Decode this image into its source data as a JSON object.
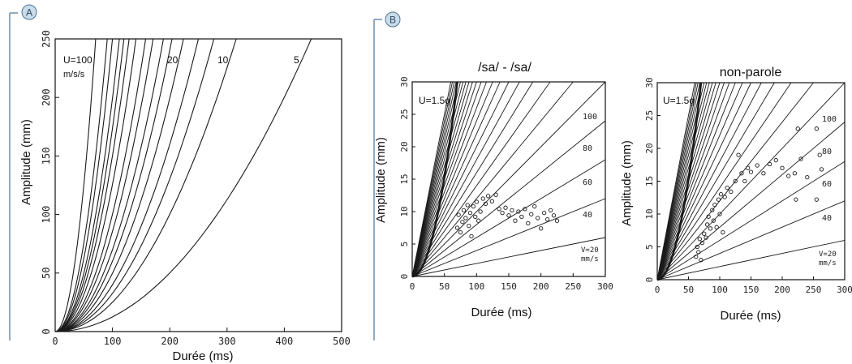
{
  "colors": {
    "curve": "#1a1a1a",
    "frame": "#111111",
    "bracket": "#6f8fa8",
    "badge_fill": "#c9dcea",
    "badge_stroke": "#4d7394"
  },
  "panels": {
    "A": {
      "badge": "A"
    },
    "B": {
      "badge": "B"
    }
  },
  "chart_data": [
    {
      "id": "A",
      "type": "line",
      "title": "",
      "xlabel": "Durée (ms)",
      "ylabel": "Amplitude (mm)",
      "xlim": [
        0,
        500
      ],
      "ylim": [
        0,
        250
      ],
      "xticks": [
        "0",
        "100",
        "200",
        "300",
        "400",
        "500"
      ],
      "yticks": [
        "0",
        "50",
        "100",
        "150",
        "200",
        "250"
      ],
      "family": "amplitude = U/2 * t^2 (parabolas)",
      "curve_labels": [
        "U=100",
        "m/s/s",
        "20",
        "10",
        "5"
      ],
      "series": [
        {
          "U": 100,
          "values_at_250mm_ms": 70.7
        },
        {
          "U": 60,
          "values_at_250mm_ms": 91
        },
        {
          "U": 50,
          "values_at_250mm_ms": 100
        },
        {
          "U": 40,
          "values_at_250mm_ms": 112
        },
        {
          "U": 35,
          "values_at_250mm_ms": 120
        },
        {
          "U": 30,
          "values_at_250mm_ms": 129
        },
        {
          "U": 25,
          "values_at_250mm_ms": 141
        },
        {
          "U": 20,
          "values_at_250mm_ms": 158
        },
        {
          "U": 17,
          "values_at_250mm_ms": 171
        },
        {
          "U": 14,
          "values_at_250mm_ms": 189
        },
        {
          "U": 12,
          "values_at_250mm_ms": 204
        },
        {
          "U": 10,
          "values_at_250mm_ms": 224
        },
        {
          "U": 8,
          "values_at_250mm_ms": 250
        },
        {
          "U": 6.5,
          "values_at_250mm_ms": 277
        },
        {
          "U": 5,
          "values_at_250mm_ms": 316
        },
        {
          "U": 2.5,
          "values_at_250mm_ms": 447
        }
      ]
    },
    {
      "id": "B1",
      "type": "line",
      "title": "/sa/ - /sa/",
      "xlabel": "Durée (ms)",
      "ylabel": "Amplitude (mm)",
      "xlim": [
        0,
        300
      ],
      "ylim": [
        0,
        30
      ],
      "xticks": [
        "0",
        "50",
        "100",
        "150",
        "200",
        "250",
        "300"
      ],
      "yticks": [
        "0",
        "5",
        "10",
        "15",
        "20",
        "25",
        "30"
      ],
      "parabola_label": "U=1.5g",
      "velocity_labels": [
        "100",
        "80",
        "60",
        "40",
        "V=20",
        "mm/s"
      ],
      "velocity_lines_mm_per_s": [
        20,
        40,
        60,
        80,
        100,
        120,
        140,
        160,
        180,
        200,
        220,
        240,
        260,
        280,
        300,
        320,
        340,
        360,
        380,
        400,
        420,
        440,
        460,
        480,
        500
      ],
      "points": [
        {
          "x": 70,
          "y": 7.5
        },
        {
          "x": 72,
          "y": 9.5
        },
        {
          "x": 75,
          "y": 6.8
        },
        {
          "x": 78,
          "y": 8.4
        },
        {
          "x": 80,
          "y": 10.2
        },
        {
          "x": 83,
          "y": 9.0
        },
        {
          "x": 86,
          "y": 11.0
        },
        {
          "x": 88,
          "y": 7.8
        },
        {
          "x": 90,
          "y": 9.8
        },
        {
          "x": 92,
          "y": 6.2
        },
        {
          "x": 95,
          "y": 10.8
        },
        {
          "x": 98,
          "y": 9.2
        },
        {
          "x": 100,
          "y": 11.5
        },
        {
          "x": 103,
          "y": 8.6
        },
        {
          "x": 106,
          "y": 10.0
        },
        {
          "x": 110,
          "y": 12.0
        },
        {
          "x": 114,
          "y": 11.2
        },
        {
          "x": 118,
          "y": 12.4
        },
        {
          "x": 124,
          "y": 11.6
        },
        {
          "x": 130,
          "y": 12.6
        },
        {
          "x": 135,
          "y": 10.4
        },
        {
          "x": 140,
          "y": 9.8
        },
        {
          "x": 145,
          "y": 10.6
        },
        {
          "x": 150,
          "y": 9.4
        },
        {
          "x": 155,
          "y": 10.2
        },
        {
          "x": 160,
          "y": 8.6
        },
        {
          "x": 165,
          "y": 10.0
        },
        {
          "x": 170,
          "y": 9.2
        },
        {
          "x": 175,
          "y": 10.4
        },
        {
          "x": 180,
          "y": 8.2
        },
        {
          "x": 185,
          "y": 9.6
        },
        {
          "x": 190,
          "y": 10.8
        },
        {
          "x": 195,
          "y": 9.0
        },
        {
          "x": 200,
          "y": 7.4
        },
        {
          "x": 205,
          "y": 9.8
        },
        {
          "x": 210,
          "y": 8.8
        },
        {
          "x": 215,
          "y": 10.2
        },
        {
          "x": 220,
          "y": 9.4
        },
        {
          "x": 225,
          "y": 8.6
        }
      ]
    },
    {
      "id": "B2",
      "type": "line",
      "title": "non-parole",
      "xlabel": "Durée (ms)",
      "ylabel": "Amplitude (mm)",
      "xlim": [
        0,
        300
      ],
      "ylim": [
        0,
        30
      ],
      "xticks": [
        "0",
        "50",
        "100",
        "150",
        "200",
        "250",
        "300"
      ],
      "yticks": [
        "0",
        "5",
        "10",
        "15",
        "20",
        "25",
        "30"
      ],
      "parabola_label": "U=1.5g",
      "velocity_labels": [
        "100",
        "80",
        "60",
        "40",
        "V=20",
        "mm/s"
      ],
      "velocity_lines_mm_per_s": [
        20,
        40,
        60,
        80,
        100,
        120,
        140,
        160,
        180,
        200,
        220,
        240,
        260,
        280,
        300,
        320,
        340,
        360,
        380,
        400,
        420,
        440,
        460,
        480,
        500
      ],
      "points": [
        {
          "x": 62,
          "y": 3.5
        },
        {
          "x": 64,
          "y": 5.0
        },
        {
          "x": 66,
          "y": 4.2
        },
        {
          "x": 68,
          "y": 6.2
        },
        {
          "x": 70,
          "y": 3.0
        },
        {
          "x": 72,
          "y": 5.6
        },
        {
          "x": 75,
          "y": 7.0
        },
        {
          "x": 78,
          "y": 6.4
        },
        {
          "x": 80,
          "y": 8.4
        },
        {
          "x": 82,
          "y": 9.6
        },
        {
          "x": 85,
          "y": 7.8
        },
        {
          "x": 88,
          "y": 10.6
        },
        {
          "x": 90,
          "y": 9.0
        },
        {
          "x": 92,
          "y": 11.4
        },
        {
          "x": 95,
          "y": 8.0
        },
        {
          "x": 98,
          "y": 12.2
        },
        {
          "x": 100,
          "y": 10.0
        },
        {
          "x": 102,
          "y": 13.0
        },
        {
          "x": 105,
          "y": 7.2
        },
        {
          "x": 108,
          "y": 12.6
        },
        {
          "x": 112,
          "y": 14.0
        },
        {
          "x": 118,
          "y": 13.4
        },
        {
          "x": 125,
          "y": 15.0
        },
        {
          "x": 130,
          "y": 19.0
        },
        {
          "x": 135,
          "y": 16.2
        },
        {
          "x": 140,
          "y": 15.0
        },
        {
          "x": 145,
          "y": 17.0
        },
        {
          "x": 150,
          "y": 16.4
        },
        {
          "x": 160,
          "y": 17.4
        },
        {
          "x": 170,
          "y": 16.2
        },
        {
          "x": 180,
          "y": 17.6
        },
        {
          "x": 190,
          "y": 18.2
        },
        {
          "x": 200,
          "y": 17.0
        },
        {
          "x": 210,
          "y": 15.8
        },
        {
          "x": 220,
          "y": 16.2
        },
        {
          "x": 225,
          "y": 23.0
        },
        {
          "x": 230,
          "y": 18.4
        },
        {
          "x": 240,
          "y": 15.6
        },
        {
          "x": 222,
          "y": 12.2
        },
        {
          "x": 255,
          "y": 12.2
        },
        {
          "x": 255,
          "y": 23.0
        },
        {
          "x": 260,
          "y": 19.0
        },
        {
          "x": 263,
          "y": 16.8
        }
      ]
    }
  ]
}
